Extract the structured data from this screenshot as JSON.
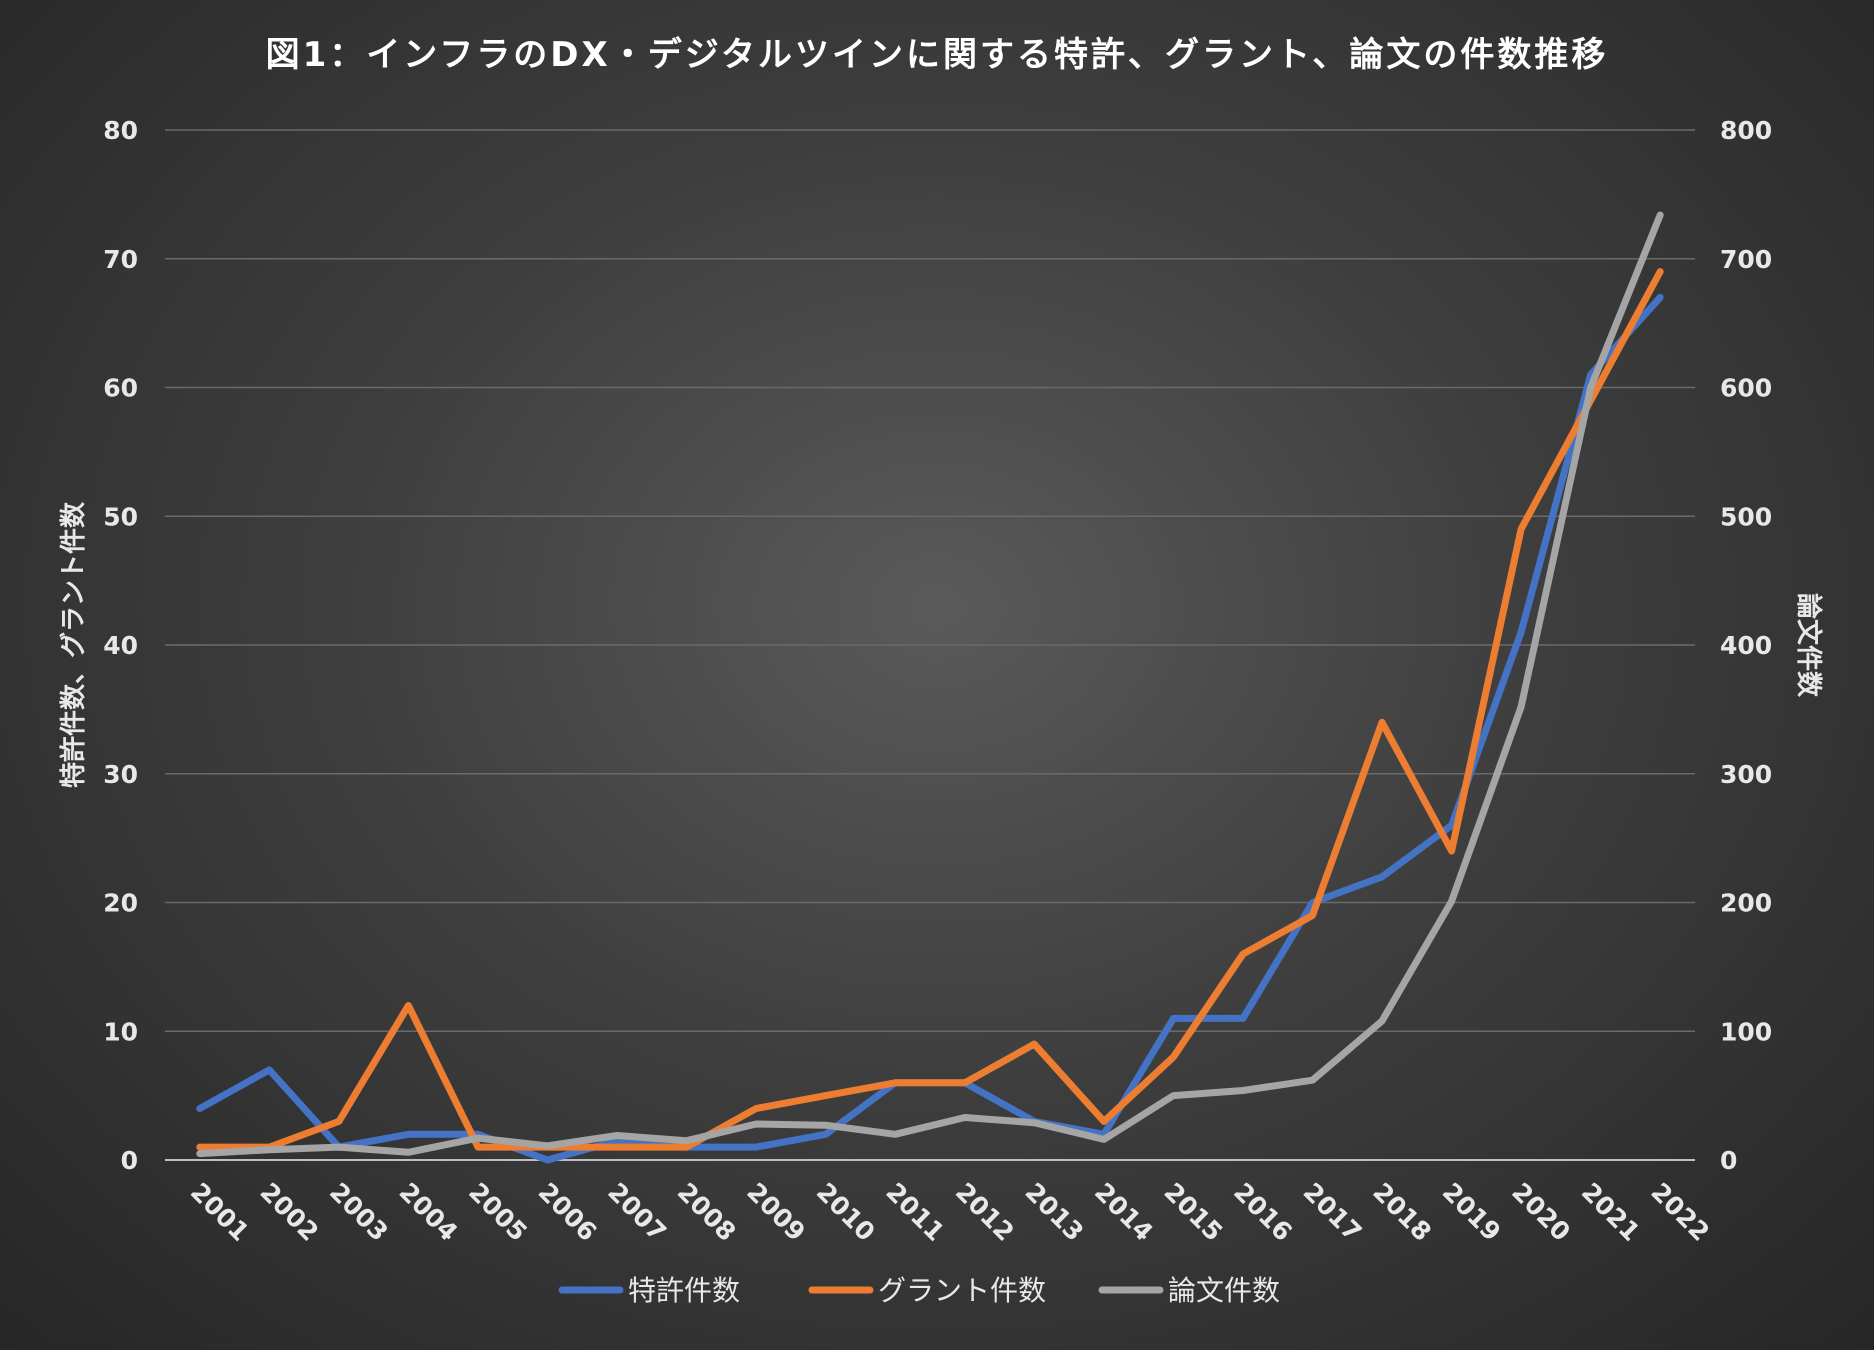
{
  "chart_data": {
    "type": "line",
    "title": "図1：インフラのDX・デジタルツインに関する特許、グラント、論文の件数推移",
    "categories": [
      "2001",
      "2002",
      "2003",
      "2004",
      "2005",
      "2006",
      "2007",
      "2008",
      "2009",
      "2010",
      "2011",
      "2012",
      "2013",
      "2014",
      "2015",
      "2016",
      "2017",
      "2018",
      "2019",
      "2020",
      "2021",
      "2022"
    ],
    "y_left": {
      "label": "特許件数、グラント件数",
      "min": 0,
      "max": 80,
      "ticks": [
        "0",
        "10",
        "20",
        "30",
        "40",
        "50",
        "60",
        "70",
        "80"
      ]
    },
    "y_right": {
      "label": "論文件数",
      "min": 0,
      "max": 800,
      "ticks": [
        "0",
        "100",
        "200",
        "300",
        "400",
        "500",
        "600",
        "700",
        "800"
      ]
    },
    "series": [
      {
        "name": "特許件数",
        "axis": "left",
        "color": "#4472C4",
        "values": [
          4,
          7,
          1,
          2,
          2,
          0,
          1.5,
          1,
          1,
          2,
          6,
          6,
          3,
          2,
          11,
          11,
          20,
          22,
          26,
          41,
          61,
          67
        ]
      },
      {
        "name": "グラント件数",
        "axis": "left",
        "color": "#ED7D31",
        "values": [
          1,
          1,
          3,
          12,
          1,
          1,
          1,
          1,
          4,
          5,
          6,
          6,
          9,
          3,
          8,
          16,
          19,
          34,
          24,
          49,
          59,
          69
        ]
      },
      {
        "name": "論文件数",
        "axis": "right",
        "color": "#A5A5A5",
        "values": [
          5,
          8,
          10,
          6,
          17,
          11,
          19,
          15,
          28,
          27,
          20,
          33,
          29,
          16,
          50,
          54,
          62,
          108,
          201,
          352,
          600,
          734
        ]
      }
    ],
    "legend_position": "bottom",
    "grid": true
  }
}
